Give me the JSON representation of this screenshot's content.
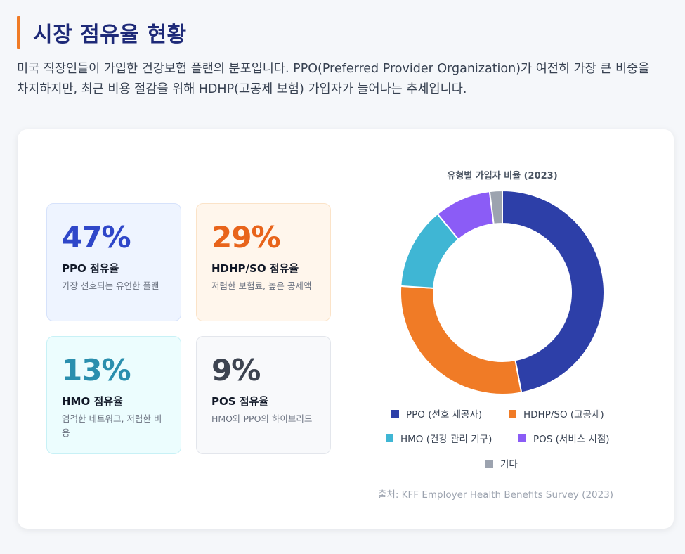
{
  "header": {
    "title": "시장 점유율 현황",
    "description": "미국 직장인들이 가입한 건강보험 플랜의 분포입니다. PPO(Preferred Provider Organization)가 여전히 가장 큰 비중을 차지하지만, 최근 비용 절감을 위해 HDHP(고공제 보험) 가입자가 늘어나는 추세입니다."
  },
  "stats": {
    "ppo": {
      "value": "47%",
      "label": "PPO 점유율",
      "desc": "가장 선호되는 유연한 플랜",
      "color": "#2f47c9"
    },
    "hdhp": {
      "value": "29%",
      "label": "HDHP/SO 점유율",
      "desc": "저렴한 보험료, 높은 공제액",
      "color": "#e8641b"
    },
    "hmo": {
      "value": "13%",
      "label": "HMO 점유율",
      "desc": "엄격한 네트워크, 저렴한 비용",
      "color": "#2a8fae"
    },
    "pos": {
      "value": "9%",
      "label": "POS 점유율",
      "desc": "HMO와 PPO의 하이브리드",
      "color": "#3d4451"
    }
  },
  "chart_data": {
    "type": "pie",
    "title": "유형별 가입자 비율 (2023)",
    "categories": [
      "PPO (선호 제공자)",
      "HDHP/SO (고공제)",
      "HMO (건강 관리 기구)",
      "POS (서비스 시점)",
      "기타"
    ],
    "values": [
      47,
      29,
      13,
      9,
      2
    ],
    "colors": [
      "#2d3fa8",
      "#f07b26",
      "#3fb6d4",
      "#8b5cf6",
      "#9ca3af"
    ],
    "legend_position": "bottom"
  },
  "source": "출처: KFF Employer Health Benefits Survey (2023)"
}
